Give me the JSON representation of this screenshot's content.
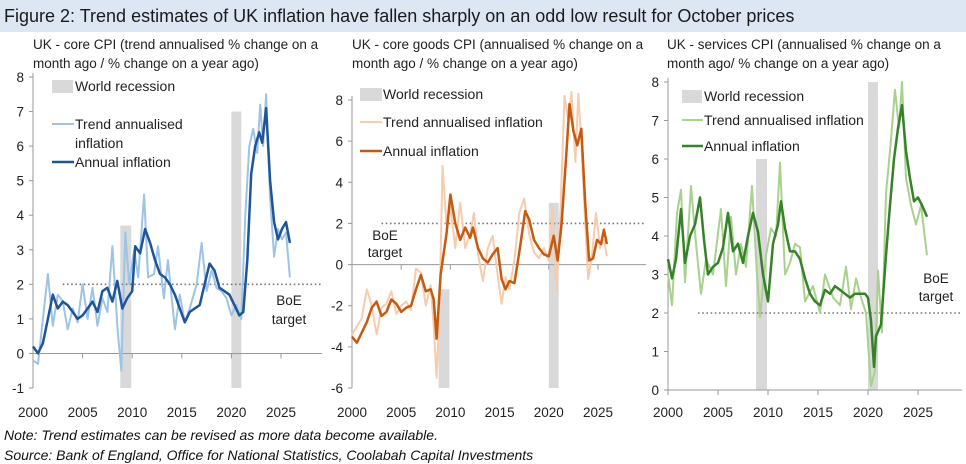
{
  "figure_title": "Figure 2: Trend estimates of UK inflation have fallen sharply on an odd low result for October prices",
  "notes": {
    "note": "Note: Trend estimates can be revised as more data become available.",
    "source": "Source: Bank of England, Office for National Statistics, Coolabah Capital Investments"
  },
  "chart_data": [
    {
      "type": "line",
      "title_line1": "UK - core CPI (trend annualised % change on a",
      "title_line2": "month ago / % change on a year ago)",
      "xlim": [
        2000,
        2030
      ],
      "ylim": [
        -1,
        8
      ],
      "x_ticks": [
        "2000",
        "2005",
        "2010",
        "2015",
        "2020",
        "2025"
      ],
      "y_ticks": [
        "-1",
        "0",
        "1",
        "2",
        "3",
        "4",
        "5",
        "6",
        "7",
        "8"
      ],
      "legend": {
        "recession": "World recession",
        "trend_line1": "Trend annualised",
        "trend_line2": "inflation",
        "annual": "Annual inflation"
      },
      "target": {
        "value": 2,
        "from": 2003,
        "label_line1": "BoE",
        "label_line2": "target"
      },
      "recessions": [
        {
          "start": 2008.8,
          "end": 2009.9,
          "height": 4.7
        },
        {
          "start": 2020.0,
          "end": 2021.0,
          "height": 8
        }
      ],
      "colors": {
        "trend": "#9dc3e6",
        "annual": "#1f5597",
        "recession": "#d9d9d9"
      },
      "series": [
        {
          "name": "Trend annualised inflation",
          "x": [
            2000,
            2000.5,
            2001,
            2001.5,
            2002,
            2002.5,
            2003,
            2003.5,
            2004,
            2004.5,
            2005,
            2005.5,
            2006,
            2006.5,
            2007,
            2007.5,
            2008,
            2008.5,
            2008.9,
            2009.3,
            2009.7,
            2010.2,
            2010.6,
            2011.2,
            2011.6,
            2012.2,
            2012.6,
            2013.2,
            2013.6,
            2014.3,
            2014.8,
            2015.3,
            2015.8,
            2016.5,
            2017,
            2017.5,
            2018,
            2018.5,
            2019,
            2019.5,
            2020,
            2020.5,
            2021,
            2021.4,
            2021.8,
            2022.2,
            2022.6,
            2022.9,
            2023.2,
            2023.5,
            2023.9,
            2024.3,
            2024.7,
            2025.1,
            2025.5,
            2025.9
          ],
          "y": [
            -0.2,
            -0.3,
            1.0,
            2.3,
            0.8,
            1.7,
            1.5,
            0.7,
            1.3,
            0.9,
            2.0,
            1.0,
            1.9,
            0.8,
            1.6,
            1.2,
            3.1,
            0.8,
            -0.5,
            3.5,
            2.0,
            3.0,
            2.2,
            4.6,
            2.2,
            2.3,
            3.1,
            1.6,
            2.7,
            0.7,
            1.7,
            0.9,
            1.3,
            2.0,
            3.2,
            1.8,
            2.4,
            1.9,
            1.8,
            1.6,
            1.1,
            1.4,
            1.0,
            4.0,
            6.0,
            6.5,
            5.8,
            7.2,
            6.0,
            7.5,
            4.5,
            2.8,
            3.6,
            3.3,
            3.5,
            2.2
          ]
        },
        {
          "name": "Annual inflation",
          "x": [
            2000,
            2000.5,
            2001,
            2001.5,
            2002,
            2002.5,
            2003,
            2003.5,
            2004,
            2004.5,
            2005,
            2005.5,
            2006,
            2006.5,
            2007,
            2007.5,
            2008,
            2008.5,
            2009,
            2009.5,
            2010,
            2010.3,
            2010.8,
            2011.3,
            2011.8,
            2012.3,
            2012.8,
            2013.3,
            2013.8,
            2014.3,
            2014.8,
            2015.3,
            2015.8,
            2016.3,
            2016.8,
            2017.3,
            2017.8,
            2018.3,
            2018.8,
            2019.3,
            2019.8,
            2020.3,
            2020.8,
            2021.2,
            2021.6,
            2022.0,
            2022.4,
            2022.8,
            2023.1,
            2023.5,
            2023.9,
            2024.3,
            2024.7,
            2025.1,
            2025.5,
            2025.9
          ],
          "y": [
            0.2,
            0.0,
            0.3,
            1.0,
            1.7,
            1.3,
            1.5,
            1.4,
            1.2,
            1.0,
            1.1,
            1.3,
            1.5,
            1.2,
            1.8,
            1.9,
            1.5,
            2.1,
            1.3,
            1.6,
            1.8,
            3.1,
            2.9,
            3.6,
            3.2,
            2.7,
            2.3,
            2.2,
            2.0,
            1.7,
            1.3,
            0.9,
            1.2,
            1.3,
            1.4,
            2.0,
            2.6,
            2.4,
            1.9,
            1.8,
            1.7,
            1.4,
            1.1,
            1.2,
            2.7,
            5.2,
            6.0,
            6.4,
            6.1,
            7.1,
            5.0,
            3.8,
            3.3,
            3.6,
            3.8,
            3.2
          ]
        }
      ]
    },
    {
      "type": "line",
      "title_line1": "UK - core goods CPI (annualised % change on a",
      "title_line2": "month ago / % change on a year ago)",
      "xlim": [
        2000,
        2030
      ],
      "ylim": [
        -6,
        8
      ],
      "x_ticks": [
        "2000",
        "2005",
        "2010",
        "2015",
        "2020",
        "2025"
      ],
      "y_ticks": [
        "-6",
        "-4",
        "-2",
        "0",
        "2",
        "4",
        "6",
        "8"
      ],
      "legend": {
        "recession": "World recession",
        "trend_line1": "Trend annualised inflation",
        "trend_line2": "",
        "annual": "Annual inflation"
      },
      "target": {
        "value": 2,
        "from": 2003,
        "label_line1": "BoE",
        "label_line2": "target"
      },
      "recessions": [
        {
          "start": 2008.8,
          "end": 2009.9,
          "height": 4.8
        },
        {
          "start": 2020.0,
          "end": 2021.0,
          "height": 9
        }
      ],
      "colors": {
        "trend": "#f8cbad",
        "annual": "#c55a11",
        "recession": "#d9d9d9"
      },
      "series": [
        {
          "name": "Trend annualised inflation",
          "x": [
            2000,
            2000.5,
            2001,
            2001.5,
            2002,
            2002.5,
            2003,
            2003.5,
            2004,
            2004.5,
            2005,
            2005.5,
            2006,
            2006.5,
            2007,
            2007.5,
            2008,
            2008.3,
            2008.6,
            2008.9,
            2009.2,
            2009.6,
            2010,
            2010.5,
            2011,
            2011.5,
            2012,
            2012.4,
            2012.8,
            2013.3,
            2013.8,
            2014.3,
            2014.8,
            2015.2,
            2015.6,
            2016,
            2016.5,
            2017,
            2017.5,
            2018,
            2018.5,
            2019,
            2019.5,
            2020,
            2020.4,
            2020.8,
            2021.2,
            2021.6,
            2022.0,
            2022.3,
            2022.7,
            2023.0,
            2023.3,
            2023.7,
            2024.0,
            2024.4,
            2024.8,
            2025.2,
            2025.6,
            2025.9
          ],
          "y": [
            -3.4,
            -3.0,
            -2.6,
            -1.2,
            -2.0,
            -3.4,
            -2.1,
            -1.9,
            -1.3,
            -2.4,
            -2.0,
            -1.8,
            -2.2,
            -0.2,
            -0.4,
            -2.0,
            -1.0,
            -3.0,
            -5.5,
            -2.0,
            4.8,
            2.0,
            2.8,
            0.8,
            3.0,
            0.8,
            1.5,
            2.5,
            0.5,
            -0.8,
            0.8,
            1.4,
            -0.5,
            -1.9,
            -0.6,
            -1.2,
            0.2,
            2.5,
            3.2,
            1.5,
            0.6,
            0.3,
            0.8,
            0.2,
            2.8,
            -1.3,
            2.8,
            8.2,
            7.0,
            8.4,
            5.0,
            8.3,
            6.0,
            2.0,
            -0.7,
            0.5,
            2.5,
            0.8,
            1.2,
            0.4
          ]
        },
        {
          "name": "Annual inflation",
          "x": [
            2000,
            2000.5,
            2001,
            2001.5,
            2002,
            2002.5,
            2003,
            2003.5,
            2004,
            2004.5,
            2005,
            2005.5,
            2006,
            2006.5,
            2007,
            2007.5,
            2008,
            2008.3,
            2008.6,
            2009,
            2009.6,
            2010,
            2010.5,
            2011,
            2011.5,
            2012,
            2012.3,
            2012.8,
            2013.3,
            2013.8,
            2014.3,
            2014.8,
            2015.2,
            2015.6,
            2016,
            2016.5,
            2017,
            2017.6,
            2018,
            2018.5,
            2019,
            2019.5,
            2020,
            2020.5,
            2020.9,
            2021.3,
            2021.8,
            2022.1,
            2022.5,
            2022.9,
            2023.3,
            2023.7,
            2024.1,
            2024.5,
            2024.9,
            2025.3,
            2025.6,
            2025.9
          ],
          "y": [
            -3.5,
            -3.8,
            -3.3,
            -2.8,
            -2.1,
            -1.8,
            -2.5,
            -2.3,
            -1.7,
            -1.9,
            -2.3,
            -2.1,
            -2.0,
            -1.2,
            -0.5,
            -1.3,
            -1.2,
            -1.7,
            -3.6,
            -0.5,
            1.5,
            3.4,
            2.0,
            1.2,
            1.8,
            1.3,
            1.8,
            0.8,
            0.3,
            0.1,
            0.5,
            0.8,
            -0.7,
            -1.2,
            -0.8,
            -0.9,
            0.6,
            2.6,
            2.2,
            1.2,
            0.8,
            0.5,
            0.4,
            1.4,
            0.2,
            2.0,
            5.5,
            7.8,
            6.5,
            5.8,
            6.6,
            3.0,
            0.2,
            0.3,
            1.2,
            1.0,
            1.7,
            1.0
          ]
        }
      ]
    },
    {
      "type": "line",
      "title_line1": "UK - services CPI (annualised % change on a",
      "title_line2": "month ago/ % change on a year ago)",
      "xlim": [
        2000,
        2030
      ],
      "ylim": [
        0,
        8
      ],
      "x_ticks": [
        "2000",
        "2005",
        "2010",
        "2015",
        "2020",
        "2025"
      ],
      "y_ticks": [
        "0",
        "1",
        "2",
        "3",
        "4",
        "5",
        "6",
        "7",
        "8"
      ],
      "legend": {
        "recession": "World recession",
        "trend_line1": "Trend annualised inflation",
        "trend_line2": "",
        "annual": "Annual inflation"
      },
      "target": {
        "value": 2,
        "from": 2003,
        "label_line1": "BoE",
        "label_line2": "target"
      },
      "recessions": [
        {
          "start": 2008.8,
          "end": 2009.9,
          "height": 6
        },
        {
          "start": 2020.0,
          "end": 2021.0,
          "height": 8
        }
      ],
      "colors": {
        "trend": "#a9d18e",
        "annual": "#38812b",
        "recession": "#d9d9d9"
      },
      "series": [
        {
          "name": "Trend annualised inflation",
          "x": [
            2000,
            2000.4,
            2000.9,
            2001.3,
            2001.7,
            2002.3,
            2002.8,
            2003.3,
            2003.8,
            2004.5,
            2005.3,
            2005.8,
            2006.3,
            2006.8,
            2007.3,
            2007.8,
            2008.4,
            2008.9,
            2009.2,
            2009.8,
            2010.3,
            2010.8,
            2011.2,
            2011.7,
            2012.2,
            2012.7,
            2013.2,
            2013.7,
            2014.5,
            2015.2,
            2015.7,
            2016.5,
            2017.2,
            2017.8,
            2018.3,
            2018.8,
            2019.3,
            2019.8,
            2020.3,
            2020.7,
            2021.0,
            2021.4,
            2021.8,
            2022.3,
            2022.7,
            2023.1,
            2023.4,
            2023.8,
            2024.3,
            2024.8,
            2025.3,
            2025.9
          ],
          "y": [
            3.0,
            2.2,
            4.6,
            5.2,
            2.8,
            5.3,
            3.8,
            2.5,
            3.4,
            3.0,
            4.7,
            2.7,
            4.5,
            3.0,
            3.8,
            3.2,
            5.3,
            3.0,
            1.9,
            3.5,
            4.2,
            4.0,
            5.9,
            3.0,
            3.3,
            3.8,
            3.7,
            2.3,
            2.7,
            2.0,
            3.0,
            2.4,
            2.2,
            3.2,
            2.1,
            2.9,
            2.4,
            2.0,
            0.1,
            0.5,
            3.1,
            1.5,
            5.1,
            6.5,
            7.8,
            6.8,
            8.0,
            5.5,
            4.8,
            4.3,
            4.8,
            3.5
          ]
        },
        {
          "name": "Annual inflation",
          "x": [
            2000,
            2000.4,
            2000.8,
            2001.3,
            2001.7,
            2002.2,
            2002.7,
            2003.2,
            2003.6,
            2004,
            2004.5,
            2005,
            2005.5,
            2006,
            2006.5,
            2007,
            2007.5,
            2008,
            2008.5,
            2009,
            2009.5,
            2010,
            2010.5,
            2011,
            2011.3,
            2011.7,
            2012.2,
            2012.7,
            2013.2,
            2013.7,
            2014.2,
            2014.7,
            2015.2,
            2015.7,
            2016.2,
            2016.7,
            2017.2,
            2017.7,
            2018.2,
            2018.7,
            2019.2,
            2019.7,
            2020,
            2020.3,
            2020.6,
            2020.8,
            2021.3,
            2021.8,
            2022.2,
            2022.6,
            2023,
            2023.4,
            2023.8,
            2024.2,
            2024.6,
            2025,
            2025.4,
            2025.9
          ],
          "y": [
            3.4,
            2.9,
            3.4,
            4.7,
            3.3,
            4.0,
            4.3,
            5.0,
            3.9,
            3.0,
            3.2,
            3.3,
            3.7,
            4.6,
            3.6,
            3.8,
            3.3,
            4.0,
            4.6,
            4.1,
            3.0,
            2.3,
            3.8,
            4.3,
            4.9,
            4.2,
            3.6,
            3.6,
            3.4,
            2.9,
            2.5,
            2.3,
            2.2,
            2.6,
            2.5,
            2.7,
            2.6,
            2.5,
            2.4,
            2.5,
            2.5,
            2.5,
            2.4,
            1.8,
            0.6,
            1.4,
            1.7,
            3.5,
            4.8,
            6.0,
            6.8,
            7.4,
            6.2,
            5.5,
            4.9,
            5.0,
            4.8,
            4.5
          ]
        }
      ]
    }
  ]
}
